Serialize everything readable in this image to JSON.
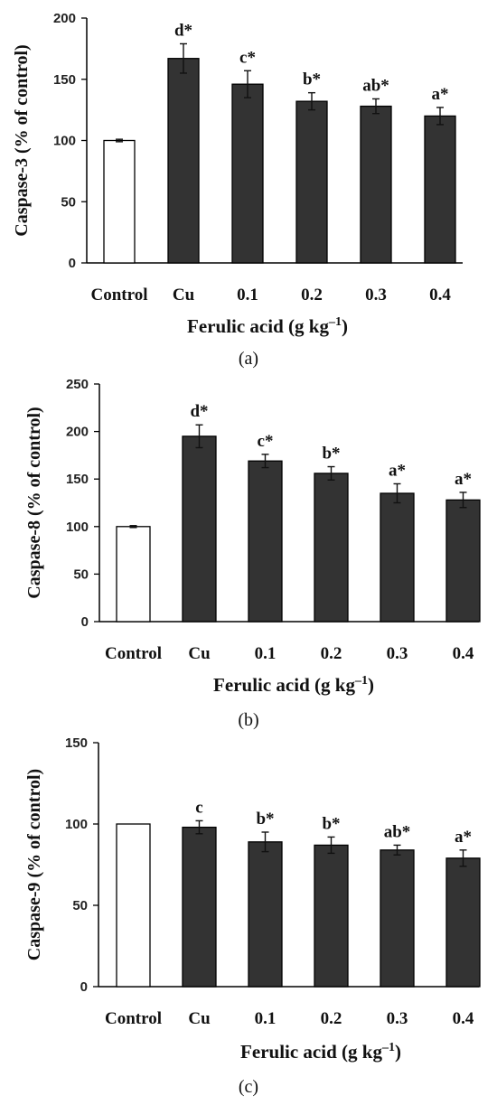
{
  "colors": {
    "control_bar": "#ffffff",
    "treatment_bar": "#333333",
    "axis": "#000000"
  },
  "chart_data": [
    {
      "type": "bar",
      "panel_label": "(a)",
      "ylabel": "Caspase-3 (% of control)",
      "xlabel": "Ferulic acid (g kg",
      "xlabel_sup": "–1",
      "xlabel_end": ")",
      "categories": [
        "Control",
        "Cu",
        "0.1",
        "0.2",
        "0.3",
        "0.4"
      ],
      "values": [
        100,
        167,
        146,
        132,
        128,
        120
      ],
      "errors": [
        1,
        12,
        11,
        7,
        6,
        7
      ],
      "letters": [
        "",
        "d*",
        "c*",
        "b*",
        "ab*",
        "a*"
      ],
      "ylim": [
        0,
        200
      ],
      "yticks": [
        0,
        50,
        100,
        150,
        200
      ]
    },
    {
      "type": "bar",
      "panel_label": "(b)",
      "ylabel": "Caspase-8 (% of control)",
      "xlabel": "Ferulic acid (g kg",
      "xlabel_sup": "–1",
      "xlabel_end": ")",
      "categories": [
        "Control",
        "Cu",
        "0.1",
        "0.2",
        "0.3",
        "0.4"
      ],
      "values": [
        100,
        195,
        169,
        156,
        135,
        128
      ],
      "errors": [
        1,
        12,
        7,
        7,
        10,
        8
      ],
      "letters": [
        "",
        "d*",
        "c*",
        "b*",
        "a*",
        "a*"
      ],
      "ylim": [
        0,
        250
      ],
      "yticks": [
        0,
        50,
        100,
        150,
        200,
        250
      ]
    },
    {
      "type": "bar",
      "panel_label": "(c)",
      "ylabel": "Caspase-9 (% of control)",
      "xlabel": "Ferulic acid (g kg",
      "xlabel_sup": "–1",
      "xlabel_end": ")",
      "categories": [
        "Control",
        "Cu",
        "0.1",
        "0.2",
        "0.3",
        "0.4"
      ],
      "values": [
        100,
        98,
        89,
        87,
        84,
        79
      ],
      "errors": [
        0,
        4,
        6,
        5,
        3,
        5
      ],
      "letters": [
        "",
        "c",
        "b*",
        "b*",
        "ab*",
        "a*"
      ],
      "ylim": [
        0,
        150
      ],
      "yticks": [
        0,
        50,
        100,
        150
      ]
    }
  ]
}
